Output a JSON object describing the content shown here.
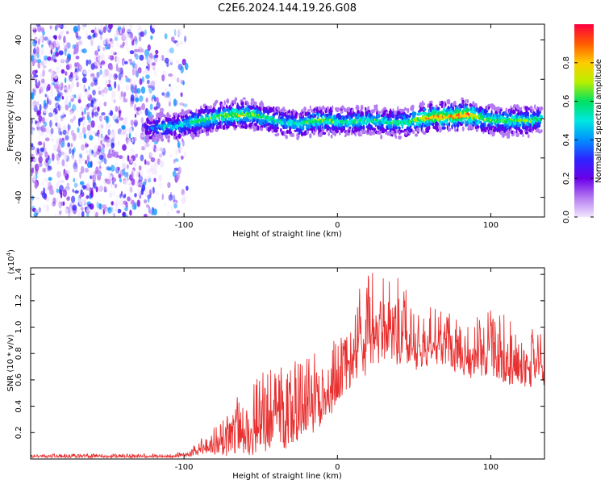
{
  "title": "C2E6.2024.144.19.26.G08",
  "chart_data": [
    {
      "type": "heatmap",
      "xlabel": "Height of straight line (km)",
      "ylabel": "Frequency (Hz)",
      "xlim": [
        -200,
        135
      ],
      "ylim": [
        -50,
        48
      ],
      "x_ticks": [
        -100,
        0,
        100
      ],
      "x_tick_labels": [
        "-100",
        "0",
        "100"
      ],
      "y_ticks": [
        -40,
        -20,
        0,
        20,
        40
      ],
      "y_tick_labels": [
        "-40",
        "-20",
        "0",
        "20",
        "40"
      ],
      "colorbar": {
        "label": "Normalized spectral amplitude",
        "ticks": [
          0.0,
          0.2,
          0.4,
          0.6,
          0.8
        ],
        "tick_labels": [
          "0.0",
          "0.2",
          "0.4",
          "0.6",
          "0.8"
        ],
        "range": [
          0,
          1
        ],
        "colormap": [
          "#f2e6ff",
          "#b47af0",
          "#6a00e8",
          "#2d24ff",
          "#0090ff",
          "#00e8e0",
          "#00e060",
          "#b8f000",
          "#ffcc00",
          "#ff5a00",
          "#ff0040"
        ]
      },
      "noise_region_x": [
        -200,
        -98
      ],
      "ridge": {
        "x": [
          -125,
          -115,
          -105,
          -95,
          -85,
          -75,
          -65,
          -55,
          -45,
          -35,
          -25,
          -15,
          -5,
          5,
          15,
          25,
          35,
          45,
          55,
          65,
          75,
          85,
          95,
          105,
          115,
          125,
          133
        ],
        "frequency": [
          -5,
          -4,
          -4,
          -2,
          -0.5,
          1.5,
          2,
          2,
          0,
          -2,
          -3,
          -1,
          -1,
          -2,
          -1,
          -1,
          -2,
          -2,
          0,
          1,
          1,
          2,
          0,
          -1,
          -1,
          -1,
          0
        ],
        "amplitude": [
          0.2,
          0.35,
          0.4,
          0.45,
          0.5,
          0.55,
          0.6,
          0.55,
          0.45,
          0.4,
          0.45,
          0.55,
          0.5,
          0.45,
          0.5,
          0.45,
          0.45,
          0.5,
          0.65,
          0.75,
          0.7,
          0.8,
          0.55,
          0.5,
          0.55,
          0.5,
          0.45
        ]
      }
    },
    {
      "type": "line",
      "xlabel": "Height of straight line (km)",
      "ylabel": "SNR (10 * v/v)",
      "y_scale_label": "(x10",
      "y_scale_exponent": "4",
      "y_scale_close": ")",
      "xlim": [
        -200,
        135
      ],
      "ylim": [
        0,
        1.45
      ],
      "x_ticks": [
        -100,
        0,
        100
      ],
      "x_tick_labels": [
        "-100",
        "0",
        "100"
      ],
      "y_ticks": [
        0.2,
        0.4,
        0.6,
        0.8,
        1.0,
        1.2,
        1.4
      ],
      "y_tick_labels": [
        "0.2",
        "0.4",
        "0.6",
        "0.8",
        "1.0",
        "1.2",
        "1.4"
      ],
      "line_color": "#e83030",
      "series": [
        {
          "x": [
            -200,
            -180,
            -160,
            -140,
            -120,
            -110,
            -100,
            -95,
            -90,
            -85,
            -80,
            -75,
            -70,
            -65,
            -60,
            -55,
            -50,
            -45,
            -40,
            -35,
            -30,
            -25,
            -20,
            -15,
            -10,
            -5,
            0,
            5,
            10,
            15,
            20,
            25,
            30,
            35,
            40,
            45,
            50,
            55,
            60,
            65,
            70,
            75,
            80,
            85,
            90,
            95,
            100,
            105,
            110,
            115,
            120,
            125,
            130,
            135
          ],
          "base": [
            0.02,
            0.02,
            0.02,
            0.02,
            0.02,
            0.02,
            0.03,
            0.04,
            0.07,
            0.09,
            0.1,
            0.12,
            0.15,
            0.18,
            0.2,
            0.22,
            0.25,
            0.3,
            0.35,
            0.3,
            0.3,
            0.35,
            0.4,
            0.4,
            0.45,
            0.5,
            0.6,
            0.7,
            0.8,
            0.85,
            0.9,
            0.95,
            0.95,
            0.95,
            0.92,
            0.9,
            0.85,
            0.85,
            0.85,
            0.85,
            0.85,
            0.8,
            0.8,
            0.75,
            0.8,
            0.8,
            0.8,
            0.75,
            0.75,
            0.7,
            0.7,
            0.7,
            0.7,
            0.7
          ],
          "spread": [
            0.02,
            0.02,
            0.02,
            0.02,
            0.02,
            0.02,
            0.03,
            0.05,
            0.08,
            0.12,
            0.15,
            0.2,
            0.25,
            0.3,
            0.35,
            0.4,
            0.45,
            0.45,
            0.45,
            0.45,
            0.45,
            0.4,
            0.4,
            0.4,
            0.4,
            0.4,
            0.4,
            0.45,
            0.45,
            0.5,
            0.5,
            0.5,
            0.5,
            0.45,
            0.45,
            0.4,
            0.35,
            0.35,
            0.35,
            0.3,
            0.3,
            0.3,
            0.3,
            0.3,
            0.35,
            0.35,
            0.35,
            0.35,
            0.35,
            0.3,
            0.3,
            0.3,
            0.3,
            0.3
          ]
        }
      ]
    }
  ]
}
